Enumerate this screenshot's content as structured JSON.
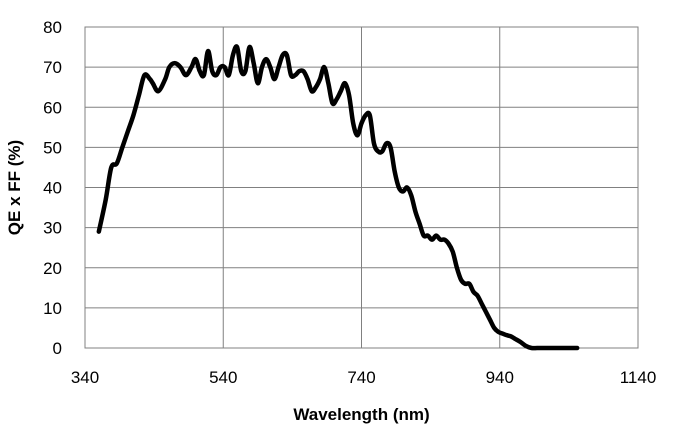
{
  "chart_data": {
    "type": "line",
    "xlabel": "Wavelength (nm)",
    "ylabel": "QE x FF (%)",
    "xlim": [
      340,
      1140
    ],
    "ylim": [
      0,
      80
    ],
    "xticks": [
      340,
      540,
      740,
      940,
      1140
    ],
    "yticks": [
      0,
      10,
      20,
      30,
      40,
      50,
      60,
      70,
      80
    ],
    "grid": true,
    "colors": {
      "line": "#000000",
      "grid": "#808080",
      "frame": "#808080"
    },
    "series": [
      {
        "x": [
          360,
          370,
          378,
          386,
          394,
          402,
          410,
          418,
          426,
          434,
          438,
          446,
          456,
          462,
          470,
          478,
          486,
          494,
          500,
          506,
          512,
          518,
          524,
          530,
          536,
          542,
          548,
          554,
          560,
          566,
          572,
          578,
          584,
          590,
          596,
          602,
          608,
          614,
          620,
          626,
          632,
          638,
          644,
          650,
          656,
          662,
          668,
          674,
          680,
          686,
          692,
          698,
          704,
          710,
          716,
          722,
          728,
          734,
          740,
          746,
          752,
          758,
          764,
          770,
          776,
          782,
          788,
          794,
          800,
          806,
          812,
          818,
          824,
          830,
          836,
          842,
          848,
          854,
          860,
          866,
          872,
          878,
          884,
          890,
          896,
          902,
          908,
          914,
          920,
          926,
          932,
          938,
          944,
          950,
          956,
          962,
          970,
          978,
          986,
          994,
          1002,
          1010,
          1018,
          1026,
          1034,
          1040,
          1046,
          1052
        ],
        "values": [
          29,
          37,
          45,
          46,
          50,
          54,
          58,
          63,
          68,
          67,
          66,
          64,
          67,
          70,
          71,
          70,
          68,
          70,
          72,
          69,
          68,
          74,
          69,
          68,
          70,
          70,
          68,
          73,
          75,
          69,
          69,
          75,
          71,
          66,
          70,
          72,
          70,
          67,
          70,
          73,
          73,
          68,
          68,
          69,
          69,
          67,
          64,
          65,
          67,
          70,
          66,
          61,
          62,
          64,
          66,
          63,
          56,
          53,
          56,
          58,
          58,
          51,
          49,
          49,
          51,
          50,
          44,
          40,
          39,
          40,
          38,
          34,
          31,
          28,
          28,
          27,
          28,
          27,
          27,
          26,
          24,
          20,
          17,
          16,
          16,
          14,
          13,
          11,
          9,
          7,
          5,
          4,
          3.6,
          3.2,
          2.9,
          2.3,
          1.5,
          0.5,
          0,
          0,
          0,
          0,
          0,
          0,
          0,
          0,
          0,
          0
        ]
      }
    ]
  }
}
